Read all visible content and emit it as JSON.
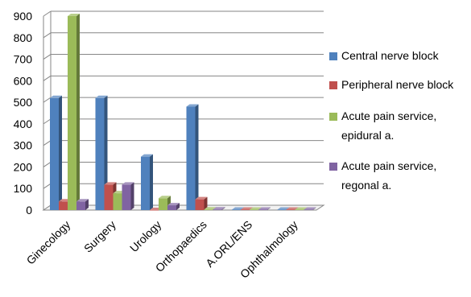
{
  "chart_data": {
    "type": "bar",
    "categories": [
      "Ginecology",
      "Surgery",
      "Urology",
      "Orthopaedics",
      "A.ORL/ENS",
      "Ophthalmology"
    ],
    "series": [
      {
        "name": "Central nerve block",
        "color": "#4f81bd",
        "values": [
          520,
          520,
          248,
          480,
          2,
          2
        ]
      },
      {
        "name": "Peripheral nerve block",
        "color": "#c0504d",
        "values": [
          40,
          118,
          0,
          50,
          2,
          2
        ]
      },
      {
        "name": "Acute pain service, epidural a.",
        "color": "#9bbb59",
        "values": [
          900,
          78,
          55,
          3,
          2,
          2
        ]
      },
      {
        "name": "Acute pain service, regonal a.",
        "color": "#8064a2",
        "values": [
          40,
          118,
          22,
          3,
          2,
          2
        ]
      }
    ],
    "legend": {
      "position": "right",
      "entries": [
        {
          "lines": [
            "Central nerve block"
          ]
        },
        {
          "lines": [
            "Peripheral nerve block"
          ]
        },
        {
          "lines": [
            "Acute pain service,",
            "epidural a."
          ]
        },
        {
          "lines": [
            "Acute pain service,",
            "regonal a."
          ]
        }
      ]
    },
    "ylim": [
      0,
      900
    ],
    "yticks": [
      0,
      100,
      200,
      300,
      400,
      500,
      600,
      700,
      800,
      900
    ],
    "grid": true,
    "style": "3d-clustered-bar"
  }
}
